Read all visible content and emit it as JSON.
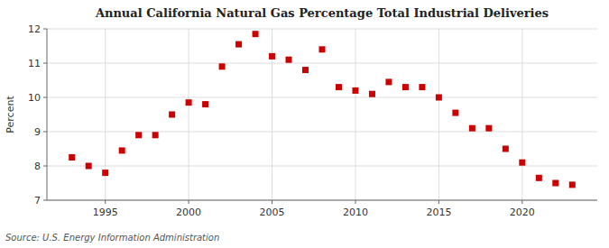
{
  "chart_data": {
    "type": "scatter",
    "title": "Annual California Natural Gas Percentage Total Industrial Deliveries",
    "ylabel": "Percent",
    "source": "Source: U.S. Energy Information Administration",
    "x": [
      1993,
      1994,
      1995,
      1996,
      1997,
      1998,
      1999,
      2000,
      2001,
      2002,
      2003,
      2004,
      2005,
      2006,
      2007,
      2008,
      2009,
      2010,
      2011,
      2012,
      2013,
      2014,
      2015,
      2016,
      2017,
      2018,
      2019,
      2020,
      2021,
      2022,
      2023
    ],
    "values": [
      8.25,
      8.0,
      7.8,
      8.45,
      8.9,
      8.9,
      9.5,
      9.85,
      9.8,
      10.9,
      11.55,
      11.85,
      11.2,
      11.1,
      10.8,
      11.4,
      10.3,
      10.2,
      10.1,
      10.45,
      10.3,
      10.3,
      10.0,
      9.55,
      9.1,
      9.1,
      8.5,
      8.1,
      7.65,
      7.5,
      7.45
    ],
    "color": "#cc0000",
    "marker": "square",
    "xlim": [
      1991.5,
      2024.5
    ],
    "ylim": [
      7,
      12
    ],
    "xticks": [
      1995,
      2000,
      2005,
      2010,
      2015,
      2020
    ],
    "yticks": [
      7,
      8,
      9,
      10,
      11,
      12
    ],
    "grid": true
  }
}
